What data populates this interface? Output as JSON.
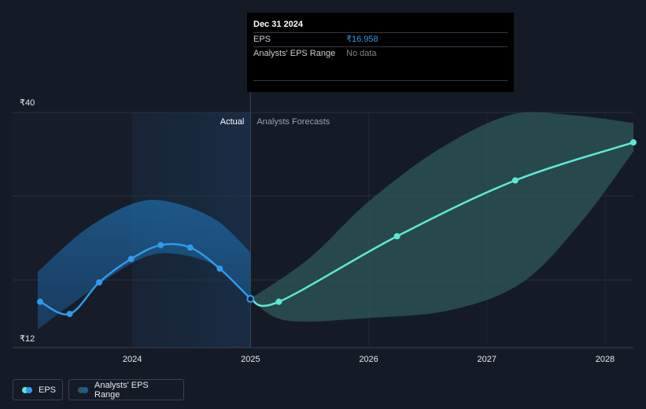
{
  "tooltip": {
    "date": "Dec 31 2024",
    "eps_label": "EPS",
    "eps_value": "₹16.958",
    "range_label": "Analysts' EPS Range",
    "range_value": "No data"
  },
  "sections": {
    "actual": "Actual",
    "forecast": "Analysts Forecasts"
  },
  "legend": {
    "eps": "EPS",
    "range": "Analysts' EPS Range"
  },
  "colors": {
    "background": "#151b26",
    "eps_actual": "#2f9bea",
    "eps_forecast": "#5ee8d2",
    "range_actual": "#1f6fb0",
    "range_forecast": "#2e5a5a"
  },
  "chart_data": {
    "type": "line",
    "title": "",
    "xlabel": "",
    "ylabel": "",
    "y_ticks": [
      "₹40",
      "₹12"
    ],
    "ylim": [
      12,
      40
    ],
    "x_ticks": [
      {
        "label": "2024",
        "value": 2024
      },
      {
        "label": "2025",
        "value": 2025
      },
      {
        "label": "2026",
        "value": 2026
      },
      {
        "label": "2027",
        "value": 2027
      },
      {
        "label": "2028",
        "value": 2028
      }
    ],
    "xlim": [
      2023.2,
      2028.24
    ],
    "grid": true,
    "legend_position": "bottom-left",
    "divider_x": 2025.0,
    "series": [
      {
        "name": "EPS",
        "segment": "actual",
        "points": [
          {
            "x": 2023.22,
            "y": 16.6
          },
          {
            "x": 2023.47,
            "y": 15.1
          },
          {
            "x": 2023.72,
            "y": 19.0
          },
          {
            "x": 2023.99,
            "y": 21.9
          },
          {
            "x": 2024.24,
            "y": 23.6
          },
          {
            "x": 2024.49,
            "y": 23.3
          },
          {
            "x": 2024.74,
            "y": 20.7
          },
          {
            "x": 2025.0,
            "y": 16.958
          }
        ]
      },
      {
        "name": "EPS",
        "segment": "forecast",
        "points": [
          {
            "x": 2025.0,
            "y": 16.958
          },
          {
            "x": 2025.24,
            "y": 16.6
          },
          {
            "x": 2026.24,
            "y": 24.7
          },
          {
            "x": 2027.24,
            "y": 31.6
          },
          {
            "x": 2028.24,
            "y": 36.3
          }
        ]
      },
      {
        "name": "Analysts' EPS Range",
        "segment": "actual",
        "upper": [
          {
            "x": 2023.2,
            "y": 20.3
          },
          {
            "x": 2023.6,
            "y": 25.5
          },
          {
            "x": 2024.0,
            "y": 28.7
          },
          {
            "x": 2024.3,
            "y": 29.0
          },
          {
            "x": 2024.7,
            "y": 26.8
          },
          {
            "x": 2025.0,
            "y": 22.7
          }
        ],
        "lower": [
          {
            "x": 2023.2,
            "y": 13.2
          },
          {
            "x": 2023.6,
            "y": 17.5
          },
          {
            "x": 2024.0,
            "y": 21.4
          },
          {
            "x": 2024.3,
            "y": 22.6
          },
          {
            "x": 2024.7,
            "y": 21.1
          },
          {
            "x": 2025.0,
            "y": 16.958
          }
        ]
      },
      {
        "name": "Analysts' EPS Range",
        "segment": "forecast",
        "upper": [
          {
            "x": 2025.0,
            "y": 16.958
          },
          {
            "x": 2025.5,
            "y": 22.0
          },
          {
            "x": 2026.0,
            "y": 29.0
          },
          {
            "x": 2026.6,
            "y": 35.5
          },
          {
            "x": 2027.2,
            "y": 39.7
          },
          {
            "x": 2027.7,
            "y": 39.7
          },
          {
            "x": 2028.24,
            "y": 38.7
          }
        ],
        "lower": [
          {
            "x": 2025.0,
            "y": 16.958
          },
          {
            "x": 2025.3,
            "y": 14.3
          },
          {
            "x": 2026.0,
            "y": 14.6
          },
          {
            "x": 2026.7,
            "y": 15.6
          },
          {
            "x": 2027.3,
            "y": 19.0
          },
          {
            "x": 2027.8,
            "y": 26.5
          },
          {
            "x": 2028.24,
            "y": 35.2
          }
        ]
      }
    ]
  }
}
